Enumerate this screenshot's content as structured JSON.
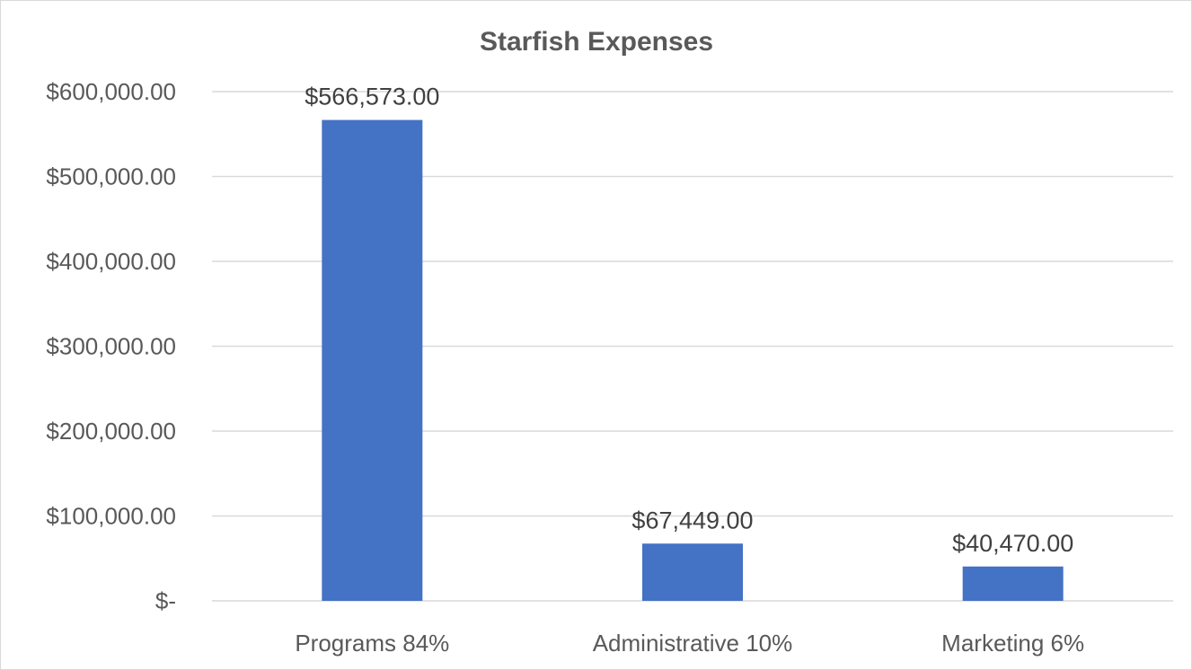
{
  "chart_data": {
    "type": "bar",
    "title": "Starfish Expenses",
    "categories": [
      "Programs 84%",
      "Administrative 10%",
      "Marketing 6%"
    ],
    "values": [
      566573,
      67449,
      40470
    ],
    "data_labels": [
      "$566,573.00",
      "$67,449.00",
      "$40,470.00"
    ],
    "y_ticks": [
      0,
      100000,
      200000,
      300000,
      400000,
      500000,
      600000
    ],
    "y_tick_labels": [
      "$-",
      "$100,000.00",
      "$200,000.00",
      "$300,000.00",
      "$400,000.00",
      "$500,000.00",
      "$600,000.00"
    ],
    "ylim": [
      0,
      600000
    ],
    "grid": true,
    "legend": "none",
    "bar_color": "#4472c4",
    "grid_color": "#d9d9d9"
  }
}
